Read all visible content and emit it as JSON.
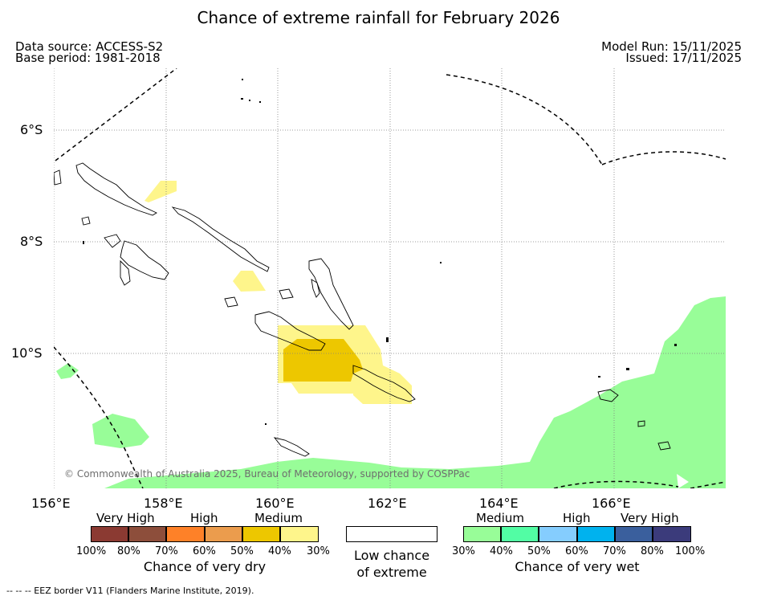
{
  "title": "Chance of extreme rainfall for February 2026",
  "header": {
    "data_source": "Data source: ACCESS-S2",
    "base_period": "Base period: 1981-2018",
    "model_run": "Model Run: 15/11/2025",
    "issued": "Issued: 17/11/2025"
  },
  "map": {
    "longitude_labels": [
      "156°E",
      "158°E",
      "160°E",
      "162°E",
      "164°E",
      "166°E"
    ],
    "latitude_labels": [
      "6°S",
      "8°S",
      "10°S"
    ],
    "copyright": "© Commonwealth of Australia 2025, Bureau of Meteorology, supported by COSPPac",
    "colors": {
      "medium_dry": "#fef58b",
      "high_dry": "#edc700",
      "medium_wet": "#98fd98",
      "land_outline": "#000000",
      "graticule": "#7f7f7f"
    }
  },
  "legend": {
    "dry": {
      "categories": [
        "Very High",
        "High",
        "Medium"
      ],
      "percents": [
        "100%",
        "80%",
        "70%",
        "60%",
        "50%",
        "40%",
        "30%"
      ],
      "colors": [
        "#8b3a32",
        "#8d4e3b",
        "#fe8128",
        "#eb9c4d",
        "#edc700",
        "#fef58b"
      ],
      "caption": "Chance of very dry"
    },
    "neutral": {
      "caption_line1": "Low chance",
      "caption_line2": "of extreme",
      "color": "#ffffff"
    },
    "wet": {
      "categories": [
        "Medium",
        "High",
        "Very High"
      ],
      "percents": [
        "30%",
        "40%",
        "50%",
        "60%",
        "70%",
        "80%",
        "100%"
      ],
      "colors": [
        "#98fd98",
        "#52fda4",
        "#85cdfe",
        "#00b2ee",
        "#3a5f9d",
        "#3b3b7b"
      ],
      "caption": "Chance of very wet"
    }
  },
  "footer": {
    "eez_note": "--  --  -- EEZ border V11 (Flanders Marine Institute, 2019)."
  }
}
